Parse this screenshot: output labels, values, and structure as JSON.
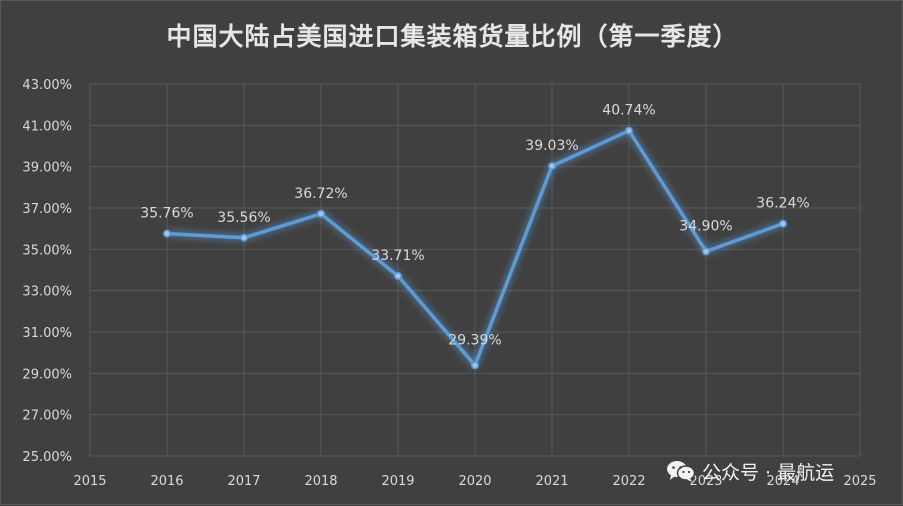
{
  "title": "中国大陆占美国进口集装箱货量比例（第一季度）",
  "watermark": {
    "text": "公众号 · 最航运",
    "icon": "wechat-icon"
  },
  "colors": {
    "background": "#404040",
    "line": "#5b9bd5",
    "text": "#d9d9d9",
    "grid": "#595959"
  },
  "chart_data": {
    "type": "line",
    "title": "中国大陆占美国进口集装箱货量比例（第一季度）",
    "x_ticks": [
      "2015",
      "2016",
      "2017",
      "2018",
      "2019",
      "2020",
      "2021",
      "2022",
      "2023",
      "2024",
      "2025"
    ],
    "y_ticks": [
      "25.00%",
      "27.00%",
      "29.00%",
      "31.00%",
      "33.00%",
      "35.00%",
      "37.00%",
      "39.00%",
      "41.00%",
      "43.00%"
    ],
    "ylim": [
      25,
      43
    ],
    "xlim": [
      2015,
      2025
    ],
    "grid": true,
    "legend": "none",
    "series": [
      {
        "x": [
          2016,
          2017,
          2018,
          2019,
          2020,
          2021,
          2022,
          2023,
          2024
        ],
        "values": [
          35.76,
          35.56,
          36.72,
          33.71,
          29.39,
          39.03,
          40.74,
          34.9,
          36.24
        ],
        "labels": [
          "35.76%",
          "35.56%",
          "36.72%",
          "33.71%",
          "29.39%",
          "39.03%",
          "40.74%",
          "34.90%",
          "36.24%"
        ]
      }
    ]
  }
}
